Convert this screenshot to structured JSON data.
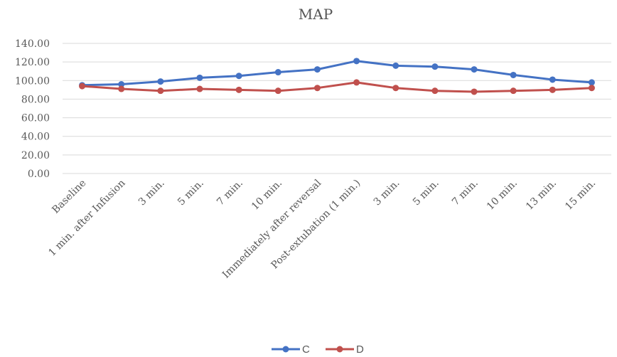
{
  "chart_data": {
    "type": "line",
    "title": "MAP",
    "xlabel": "",
    "ylabel": "",
    "categories": [
      "Baseline",
      "1 min. after Infusion",
      "3 min.",
      "5 min.",
      "7 min.",
      "10 min.",
      "Immediately after reversal",
      "Post-extubation (1 min.)",
      "3 min.",
      "5 min.",
      "7 min.",
      "10 min.",
      "13 min.",
      "15 min."
    ],
    "y_ticks": [
      "0.00",
      "20.00",
      "40.00",
      "60.00",
      "80.00",
      "100.00",
      "120.00",
      "140.00"
    ],
    "ylim": [
      0,
      140
    ],
    "grid": true,
    "legend_position": "bottom",
    "series": [
      {
        "name": "C",
        "color": "#4472c4",
        "values": [
          95,
          96,
          99,
          103,
          105,
          109,
          112,
          121,
          116,
          115,
          112,
          106,
          101,
          98
        ]
      },
      {
        "name": "D",
        "color": "#c0504d",
        "values": [
          94,
          91,
          89,
          91,
          90,
          89,
          92,
          98,
          92,
          89,
          88,
          89,
          90,
          92
        ]
      }
    ]
  }
}
